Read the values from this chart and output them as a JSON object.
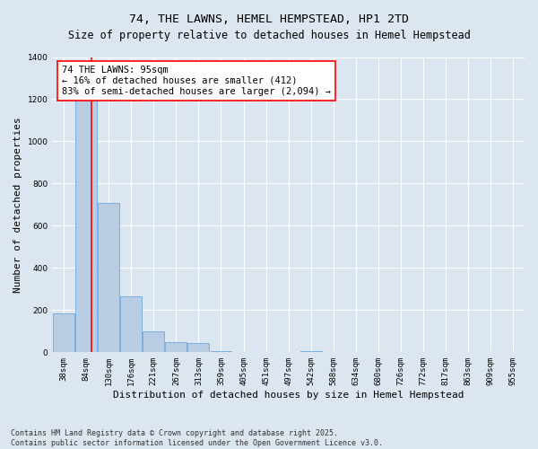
{
  "title": "74, THE LAWNS, HEMEL HEMPSTEAD, HP1 2TD",
  "subtitle": "Size of property relative to detached houses in Hemel Hempstead",
  "xlabel": "Distribution of detached houses by size in Hemel Hempstead",
  "ylabel": "Number of detached properties",
  "categories": [
    "38sqm",
    "84sqm",
    "130sqm",
    "176sqm",
    "221sqm",
    "267sqm",
    "313sqm",
    "359sqm",
    "405sqm",
    "451sqm",
    "497sqm",
    "542sqm",
    "588sqm",
    "634sqm",
    "680sqm",
    "726sqm",
    "772sqm",
    "817sqm",
    "863sqm",
    "909sqm",
    "955sqm"
  ],
  "values": [
    185,
    1270,
    710,
    265,
    100,
    50,
    45,
    5,
    0,
    0,
    0,
    5,
    0,
    0,
    0,
    0,
    0,
    0,
    0,
    0,
    0
  ],
  "bar_color": "#b8cce4",
  "bar_edge_color": "#6fa8dc",
  "annotation_text": "74 THE LAWNS: 95sqm\n← 16% of detached houses are smaller (412)\n83% of semi-detached houses are larger (2,094) →",
  "annotation_box_color": "white",
  "annotation_box_edge_color": "red",
  "ylim": [
    0,
    1400
  ],
  "yticks": [
    0,
    200,
    400,
    600,
    800,
    1000,
    1200,
    1400
  ],
  "background_color": "#dce6f1",
  "plot_bg_color": "#dce6f1",
  "footer": "Contains HM Land Registry data © Crown copyright and database right 2025.\nContains public sector information licensed under the Open Government Licence v3.0.",
  "title_fontsize": 9.5,
  "xlabel_fontsize": 8,
  "ylabel_fontsize": 8,
  "tick_fontsize": 6.5,
  "annotation_fontsize": 7.5,
  "footer_fontsize": 6,
  "red_line_x": 1.24
}
